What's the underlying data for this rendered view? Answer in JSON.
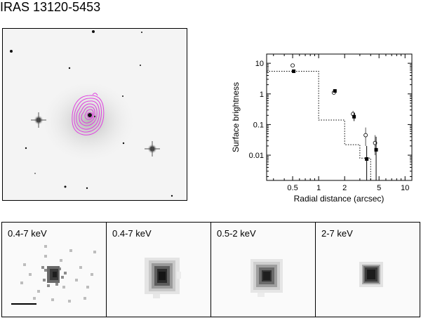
{
  "figure": {
    "title": "IRAS 13120-5453",
    "contour_color": "#e040e0"
  },
  "chart_data": {
    "type": "scatter",
    "title": "",
    "xlabel": "Radial distance (arcsec)",
    "ylabel": "Surface brightness",
    "x_scale": "log",
    "y_scale": "log",
    "xlim": [
      0.25,
      12
    ],
    "ylim": [
      0.0015,
      20
    ],
    "x_ticks": [
      0.5,
      1,
      2,
      5,
      10
    ],
    "x_tick_labels": [
      "0.5",
      "1",
      "2",
      "5",
      "10"
    ],
    "y_ticks": [
      10,
      1,
      0.1,
      0.01
    ],
    "y_tick_labels": [
      "10",
      "1",
      "0.1",
      "0.01"
    ],
    "series": [
      {
        "marker": "filled-square",
        "points": [
          {
            "x": 0.5,
            "y": 5.5,
            "ylo": 4.8,
            "yhi": 6.2
          },
          {
            "x": 1.5,
            "y": 1.25,
            "ylo": 1.1,
            "yhi": 1.4
          },
          {
            "x": 2.5,
            "y": 0.18,
            "ylo": 0.13,
            "yhi": 0.24
          },
          {
            "x": 3.5,
            "y": 0.0075,
            "ylo": 0.0015,
            "yhi": 0.02
          },
          {
            "x": 4.5,
            "y": 0.015,
            "ylo": 0.0015,
            "yhi": 0.04
          }
        ]
      },
      {
        "marker": "open-circle",
        "points": [
          {
            "x": 0.5,
            "y": 8.5,
            "ylo": 7.5,
            "yhi": 9.5
          },
          {
            "x": 1.5,
            "y": 1.1,
            "ylo": 0.95,
            "yhi": 1.25
          },
          {
            "x": 2.5,
            "y": 0.22,
            "ylo": 0.17,
            "yhi": 0.28
          },
          {
            "x": 3.5,
            "y": 0.045,
            "ylo": 0.02,
            "yhi": 0.08
          },
          {
            "x": 4.5,
            "y": 0.025,
            "ylo": 0.01,
            "yhi": 0.045
          }
        ]
      },
      {
        "line": "dotted-step",
        "steps": [
          {
            "x0": 0.25,
            "x1": 1.0,
            "y": 5.5
          },
          {
            "x0": 1.0,
            "x1": 2.0,
            "y": 0.14
          },
          {
            "x0": 2.0,
            "x1": 3.0,
            "y": 0.022
          },
          {
            "x0": 3.0,
            "x1": 4.0,
            "y": 0.008
          },
          {
            "x0": 4.0,
            "x1": 12,
            "y": 0.0015
          }
        ]
      }
    ]
  },
  "panels": [
    {
      "label": "0.4-7 keV",
      "style": "pixelated"
    },
    {
      "label": "0.4-7 keV",
      "style": "smooth"
    },
    {
      "label": "0.5-2 keV",
      "style": "smooth"
    },
    {
      "label": "2-7 keV",
      "style": "compact"
    }
  ]
}
